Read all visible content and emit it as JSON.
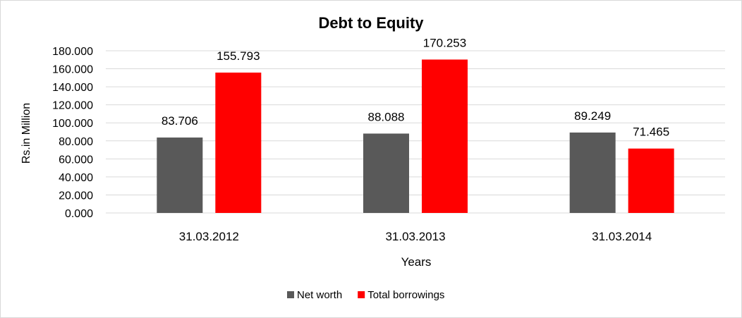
{
  "chart_data": {
    "type": "bar",
    "title": "Debt to Equity",
    "title_color": "#e00000",
    "xlabel": "Years",
    "ylabel": "Rs.in Million",
    "categories": [
      "31.03.2012",
      "31.03.2013",
      "31.03.2014"
    ],
    "series": [
      {
        "name": "Net worth",
        "color": "#595959",
        "values": [
          83.706,
          88.088,
          89.249
        ],
        "labels": [
          "83.706",
          "88.088",
          "89.249"
        ]
      },
      {
        "name": "Total borrowings",
        "color": "#ff0000",
        "values": [
          155.793,
          170.253,
          71.465
        ],
        "labels": [
          "155.793",
          "170.253",
          "71.465"
        ]
      }
    ],
    "ylim": [
      0,
      180
    ],
    "yticks": [
      0,
      20,
      40,
      60,
      80,
      100,
      120,
      140,
      160,
      180
    ],
    "ytick_labels": [
      "0.000",
      "20.000",
      "40.000",
      "60.000",
      "80.000",
      "100.000",
      "120.000",
      "140.000",
      "160.000",
      "180.000"
    ],
    "grid": true,
    "grid_color": "#d9d9d9",
    "legend_position": "bottom"
  }
}
